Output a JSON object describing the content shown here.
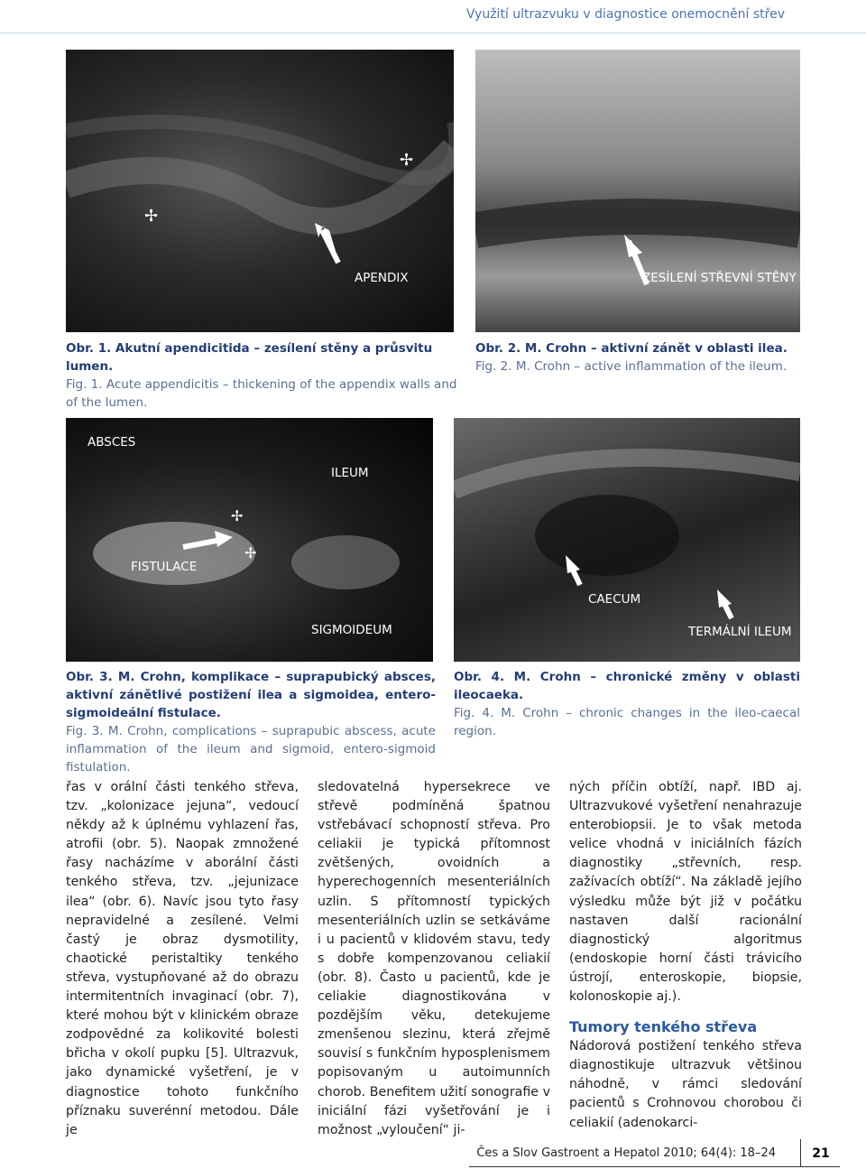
{
  "header": {
    "running_title": "Využití ultrazvuku v diagnostice onemocnění střev"
  },
  "figures": [
    {
      "labels": [
        "APENDIX"
      ],
      "caption_cz": "Obr. 1. Akutní apendicitida – zesílení stěny a průsvitu lumen.",
      "caption_en": "Fig. 1. Acute appendicitis – thickening of the appendix walls and of the lumen."
    },
    {
      "labels": [
        "ZESÍLENÍ STŘEVNÍ STĚNY"
      ],
      "caption_cz": "Obr. 2. M. Crohn – aktivní zánět v oblasti ilea.",
      "caption_en": "Fig. 2. M. Crohn – active inflammation of the ileum."
    },
    {
      "labels": [
        "ABSCES",
        "ILEUM",
        "FISTULACE",
        "SIGMOIDEUM"
      ],
      "caption_cz": "Obr. 3. M. Crohn, komplikace – suprapubický absces, aktivní zánětlivé postižení ilea a sigmoidea, entero-sigmoideální fistulace.",
      "caption_en": "Fig. 3. M. Crohn, complications – suprapubic abscess, acute inflammation of the ileum and sigmoid, entero-sigmoid fistulation."
    },
    {
      "labels": [
        "CAECUM",
        "TERMÁLNÍ ILEUM"
      ],
      "caption_cz": "Obr. 4. M. Crohn – chronické změny v oblasti ileocaeka.",
      "caption_en": "Fig. 4. M. Crohn – chronic changes in the ileo-caecal region."
    }
  ],
  "columns": [
    {
      "paragraphs": [
        "řas v orální části tenkého střeva, tzv. „kolonizace jejuna“, vedoucí někdy až k úplnému vyhlazení řas, atrofii (obr. 5). Naopak zmnožené řasy nacházíme v aborální části tenkého střeva, tzv. „jejunizace ilea“ (obr. 6). Navíc jsou tyto řasy nepravidelné a zesílené. Velmi častý je obraz dysmotility, chaotické peristaltiky tenkého střeva, vystupňované až do obrazu intermitentních invaginací (obr. 7), které mohou být v klinickém obraze zodpovědné za kolikovité bolesti břicha v okolí pupku [5]. Ultrazvuk, jako dynamické vyšetření, je v diagnostice tohoto funkčního příznaku suverénní metodou. Dále je"
      ]
    },
    {
      "paragraphs": [
        "sledovatelná hypersekrece ve střevě podmíněná špatnou vstřebávací schopností střeva. Pro celiakii je typická přítomnost zvětšených, ovoidních a hyperechogenních mesenteriálních uzlin. S přítomností typických mesenteriálních uzlin se setkáváme i u pacientů v klidovém stavu, tedy s dobře kompenzovanou celiakií (obr. 8). Často u pacientů, kde je celiakie diagnostikována v pozdějším věku, detekujeme zmenšenou slezinu, která zřejmě souvisí s funkčním hyposplenismem popisovaným u autoimunních chorob. Benefitem užití sonografie v iniciální fázi vyšetřování je i možnost „vyloučení“ ji-"
      ]
    },
    {
      "paragraphs": [
        "ných příčin obtíží, např. IBD aj. Ultrazvukové vyšetření nenahrazuje enterobiopsii. Je to však metoda velice vhodná v iniciálních fázích diagnostiky „střevních, resp. zažívacích obtíží“. Na základě jejího výsledku může být již v počátku nastaven další racionální diagnostický algoritmus (endoskopie horní části trávicího ústrojí, enteroskopie, biopsie, kolonoskopie aj.)."
      ],
      "heading": "Tumory tenkého střeva",
      "paragraphs_after": [
        "Nádorová postižení tenkého střeva diagnostikuje ultrazvuk většinou náhodně, v rámci sledování pacientů s Crohnovou chorobou či celiakií (adenokarci-"
      ]
    }
  ],
  "footer": {
    "journal": "Čes a Slov Gastroent a Hepatol 2010; 64(4): 18–24",
    "page": "21"
  }
}
